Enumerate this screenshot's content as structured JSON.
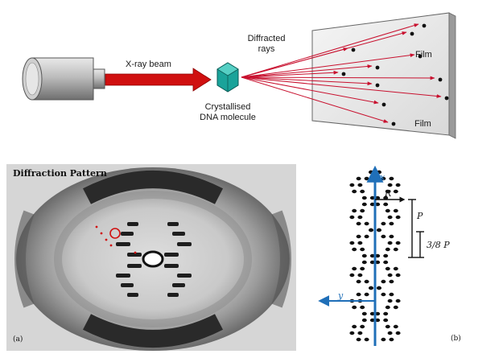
{
  "setup": {
    "beam_label": "X-ray beam",
    "crystal_label": [
      "Crystallised",
      "DNA molecule"
    ],
    "diffracted_label": [
      "Diffracted",
      "rays"
    ],
    "film_label": "Film",
    "film_label_top": "Film"
  },
  "photo": {
    "title": "Diffraction Pattern",
    "panel_label": "(a)"
  },
  "helix": {
    "axis_x": "x",
    "axis_y": "y",
    "radius_label": "R",
    "pitch_label": "P",
    "fraction_label": "3/8 P",
    "panel_label": "(b)"
  },
  "colors": {
    "beam": "#d01010",
    "crystal": "#1aa39a",
    "axis_blue": "#1f6fb8",
    "ray": "#c8102e"
  }
}
